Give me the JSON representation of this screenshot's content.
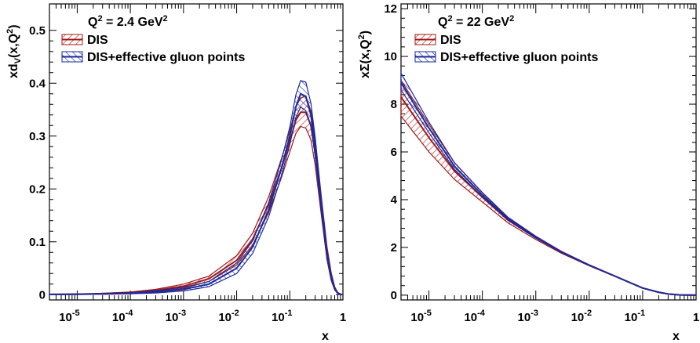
{
  "colors": {
    "dis": "#a01818",
    "dis_hatch": "#c03030",
    "gluon": "#1a2a9a",
    "gluon_hatch": "#3040c0",
    "axis": "#000000"
  },
  "chart_data": [
    {
      "type": "line",
      "id": "left",
      "title": "",
      "annotation_main": "Q",
      "annotation_sup1": "2",
      "annotation_rest": " = 2.4 GeV",
      "annotation_sup2": "2",
      "ylabel_main": "xd",
      "ylabel_sub": "V",
      "ylabel_args": "(x,Q",
      "ylabel_sup": "2",
      "ylabel_close": ")",
      "xlabel": "x",
      "xscale": "log",
      "xlim": [
        3e-06,
        1
      ],
      "ylim": [
        -0.01,
        0.55
      ],
      "yticks": [
        0,
        0.1,
        0.2,
        0.3,
        0.4,
        0.5
      ],
      "ytick_labels": [
        "0",
        "0.1",
        "0.2",
        "0.3",
        "0.4",
        "0.5"
      ],
      "xtick_exponents": [
        "-5",
        "-4",
        "-3",
        "-2",
        "-1"
      ],
      "xtick_base": "10",
      "xtick_one": "1",
      "legend_position": "top-left",
      "series": [
        {
          "name": "DIS",
          "x": [
            3e-06,
            1e-05,
            3e-05,
            0.0001,
            0.0003,
            0.001,
            0.003,
            0.01,
            0.02,
            0.04,
            0.07,
            0.1,
            0.13,
            0.16,
            0.2,
            0.25,
            0.3,
            0.4,
            0.5,
            0.6,
            0.7,
            0.8,
            0.9,
            1.0
          ],
          "central": [
            0.0005,
            0.001,
            0.002,
            0.004,
            0.008,
            0.016,
            0.03,
            0.065,
            0.105,
            0.17,
            0.24,
            0.29,
            0.33,
            0.345,
            0.345,
            0.32,
            0.27,
            0.16,
            0.08,
            0.035,
            0.012,
            0.003,
            0.0008,
            0.0
          ],
          "lower": [
            0.0003,
            0.0007,
            0.0015,
            0.003,
            0.006,
            0.012,
            0.025,
            0.056,
            0.094,
            0.155,
            0.222,
            0.27,
            0.305,
            0.318,
            0.315,
            0.293,
            0.245,
            0.143,
            0.068,
            0.028,
            0.009,
            0.002,
            0.0005,
            0.0
          ],
          "upper": [
            0.0008,
            0.0014,
            0.0026,
            0.005,
            0.01,
            0.02,
            0.035,
            0.074,
            0.116,
            0.185,
            0.258,
            0.31,
            0.355,
            0.372,
            0.376,
            0.347,
            0.295,
            0.177,
            0.092,
            0.042,
            0.015,
            0.004,
            0.0011,
            0.0
          ]
        },
        {
          "name": "DIS+effective gluon points",
          "x": [
            3e-06,
            1e-05,
            3e-05,
            0.0001,
            0.0003,
            0.001,
            0.003,
            0.01,
            0.02,
            0.04,
            0.07,
            0.1,
            0.13,
            0.16,
            0.2,
            0.25,
            0.3,
            0.4,
            0.5,
            0.6,
            0.7,
            0.8,
            0.9,
            1.0
          ],
          "central": [
            0.0003,
            0.0006,
            0.0012,
            0.0025,
            0.005,
            0.01,
            0.02,
            0.05,
            0.09,
            0.16,
            0.24,
            0.3,
            0.355,
            0.38,
            0.375,
            0.34,
            0.28,
            0.16,
            0.075,
            0.032,
            0.011,
            0.003,
            0.0007,
            0.0
          ],
          "lower": [
            0.0001,
            0.0003,
            0.0007,
            0.0015,
            0.003,
            0.007,
            0.015,
            0.04,
            0.078,
            0.147,
            0.226,
            0.284,
            0.335,
            0.355,
            0.348,
            0.318,
            0.262,
            0.148,
            0.067,
            0.027,
            0.009,
            0.002,
            0.0004,
            0.0
          ],
          "upper": [
            0.0006,
            0.001,
            0.0018,
            0.0035,
            0.007,
            0.014,
            0.025,
            0.06,
            0.102,
            0.174,
            0.255,
            0.317,
            0.378,
            0.405,
            0.402,
            0.362,
            0.298,
            0.172,
            0.083,
            0.037,
            0.013,
            0.004,
            0.001,
            0.0
          ]
        }
      ]
    },
    {
      "type": "line",
      "id": "right",
      "title": "",
      "annotation_main": "Q",
      "annotation_sup1": "2",
      "annotation_rest": " = 22 GeV",
      "annotation_sup2": "2",
      "ylabel_main": "x",
      "ylabel_sub": "",
      "ylabel_args": "Σ(x,Q",
      "ylabel_sup": "2",
      "ylabel_close": ")",
      "xlabel": "x",
      "xscale": "log",
      "xlim": [
        3e-06,
        1
      ],
      "ylim": [
        -0.2,
        12.2
      ],
      "yticks": [
        0,
        2,
        4,
        6,
        8,
        10,
        12
      ],
      "ytick_labels": [
        "0",
        "2",
        "4",
        "6",
        "8",
        "10",
        "12"
      ],
      "xtick_exponents": [
        "-5",
        "-4",
        "-3",
        "-2",
        "-1"
      ],
      "xtick_base": "10",
      "xtick_one": "1",
      "legend_position": "top-left",
      "series": [
        {
          "name": "DIS",
          "x": [
            3e-06,
            1e-05,
            3e-05,
            0.0001,
            0.0003,
            0.001,
            0.003,
            0.01,
            0.03,
            0.1,
            0.2,
            0.3,
            0.5,
            0.7,
            1.0
          ],
          "central": [
            8.3,
            6.6,
            5.2,
            4.1,
            3.15,
            2.4,
            1.8,
            1.25,
            0.8,
            0.3,
            0.12,
            0.05,
            0.01,
            0.002,
            0.0
          ],
          "lower": [
            7.5,
            6.0,
            4.85,
            3.9,
            3.03,
            2.33,
            1.76,
            1.23,
            0.79,
            0.29,
            0.11,
            0.045,
            0.008,
            0.001,
            0.0
          ],
          "upper": [
            9.0,
            7.15,
            5.55,
            4.3,
            3.27,
            2.47,
            1.84,
            1.27,
            0.81,
            0.31,
            0.13,
            0.055,
            0.012,
            0.003,
            0.0
          ]
        },
        {
          "name": "DIS+effective gluon points",
          "x": [
            3e-06,
            1e-05,
            3e-05,
            0.0001,
            0.0003,
            0.001,
            0.003,
            0.01,
            0.03,
            0.1,
            0.2,
            0.3,
            0.5,
            0.7,
            1.0
          ],
          "central": [
            8.9,
            7.0,
            5.4,
            4.2,
            3.2,
            2.42,
            1.81,
            1.26,
            0.8,
            0.3,
            0.12,
            0.05,
            0.01,
            0.002,
            0.0
          ],
          "lower": [
            8.6,
            6.8,
            5.27,
            4.12,
            3.15,
            2.39,
            1.79,
            1.25,
            0.795,
            0.297,
            0.118,
            0.048,
            0.009,
            0.0015,
            0.0
          ],
          "upper": [
            9.3,
            7.25,
            5.55,
            4.29,
            3.25,
            2.46,
            1.83,
            1.27,
            0.805,
            0.303,
            0.122,
            0.052,
            0.011,
            0.0025,
            0.0
          ]
        }
      ]
    }
  ]
}
